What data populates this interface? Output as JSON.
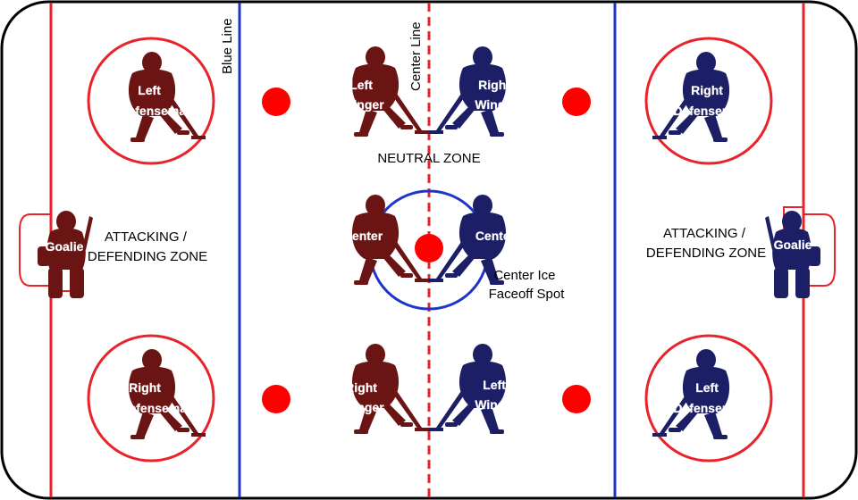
{
  "labels": {
    "blue_line": "Blue Line",
    "center_line": "Center Line",
    "neutral_zone": "NEUTRAL ZONE",
    "left_zone": [
      "ATTACKING /",
      "DEFENDING ZONE"
    ],
    "right_zone": [
      "ATTACKING /",
      "DEFENDING ZONE"
    ],
    "center_spot": [
      "Center Ice",
      "Faceoff Spot"
    ]
  },
  "teams": {
    "left": {
      "color": "#6b1414"
    },
    "right": {
      "color": "#1c1f66"
    }
  },
  "colors": {
    "rink_border": "#000000",
    "red_line": "#e8232a",
    "blue_line": "#1f35c8",
    "faceoff_dot": "#ff0000"
  },
  "players": {
    "left_goalie": [
      "Goalie"
    ],
    "left_ld": [
      "Left",
      "Defenseman"
    ],
    "left_rd": [
      "Right",
      "Defenseman"
    ],
    "left_lw": [
      "Left",
      "Winger"
    ],
    "left_rw": [
      "Right",
      "Winger"
    ],
    "left_c": [
      "Center"
    ],
    "right_goalie": [
      "Goalie"
    ],
    "right_rd": [
      "Right",
      "Defenseman"
    ],
    "right_ld": [
      "Left",
      "Defenseman"
    ],
    "right_rw": [
      "Right",
      "Winger"
    ],
    "right_lw": [
      "Left",
      "Winger"
    ],
    "right_c": [
      "Center"
    ]
  }
}
